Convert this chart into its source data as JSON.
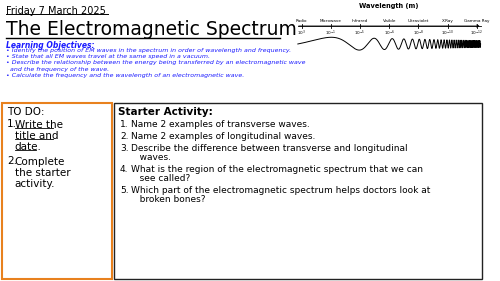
{
  "bg_color": "#ffffff",
  "date_text": "Friday 7 March 2025",
  "title_text": "The Electromagnetic Spectrum",
  "learning_obj_header": "Learning Objectives:",
  "learning_objectives": [
    "• Identify the position of EM waves in the spectrum in order of wavelength and frequency.",
    "• State that all EM waves travel at the same speed in a vacuum.",
    "• Describe the relationship between the energy being transferred by an electromagnetic wave",
    "  and the frequency of the wave.",
    "• Calculate the frequency and the wavelength of an electromagnetic wave."
  ],
  "spectrum_labels": [
    "Radio",
    "Microwave",
    "Infrared",
    "Visible",
    "Ultraviolet",
    "X-Ray",
    "Gamma Ray"
  ],
  "spectrum_exponents": [
    "3",
    "-1",
    "-5",
    "-6",
    "-8",
    "-10",
    "-12"
  ],
  "wavelength_label": "Wavelength (m)",
  "starter_header": "Starter Activity:",
  "starter_items": [
    [
      "1.",
      "Name 2 examples of transverse waves."
    ],
    [
      "2.",
      "Name 2 examples of longitudinal waves."
    ],
    [
      "3.",
      "Describe the difference between transverse and longitudinal",
      "   waves."
    ],
    [
      "4.",
      "What is the region of the electromagnetic spectrum that we can",
      "   see called?"
    ],
    [
      "5.",
      "Which part of the electromagnetic spectrum helps doctors look at",
      "   broken bones?"
    ]
  ],
  "todo_header": "TO DO:",
  "todo_line1_num": "1.",
  "todo_line1_parts": [
    "Write the",
    "title and",
    "date."
  ],
  "todo_line2_num": "2.",
  "todo_line2_parts": [
    "Complete",
    "the starter",
    "activity."
  ],
  "orange_color": "#e8811e",
  "blue_color": "#1a1aff",
  "todo_box_color": "#e8811e",
  "starter_box_color": "#222222"
}
